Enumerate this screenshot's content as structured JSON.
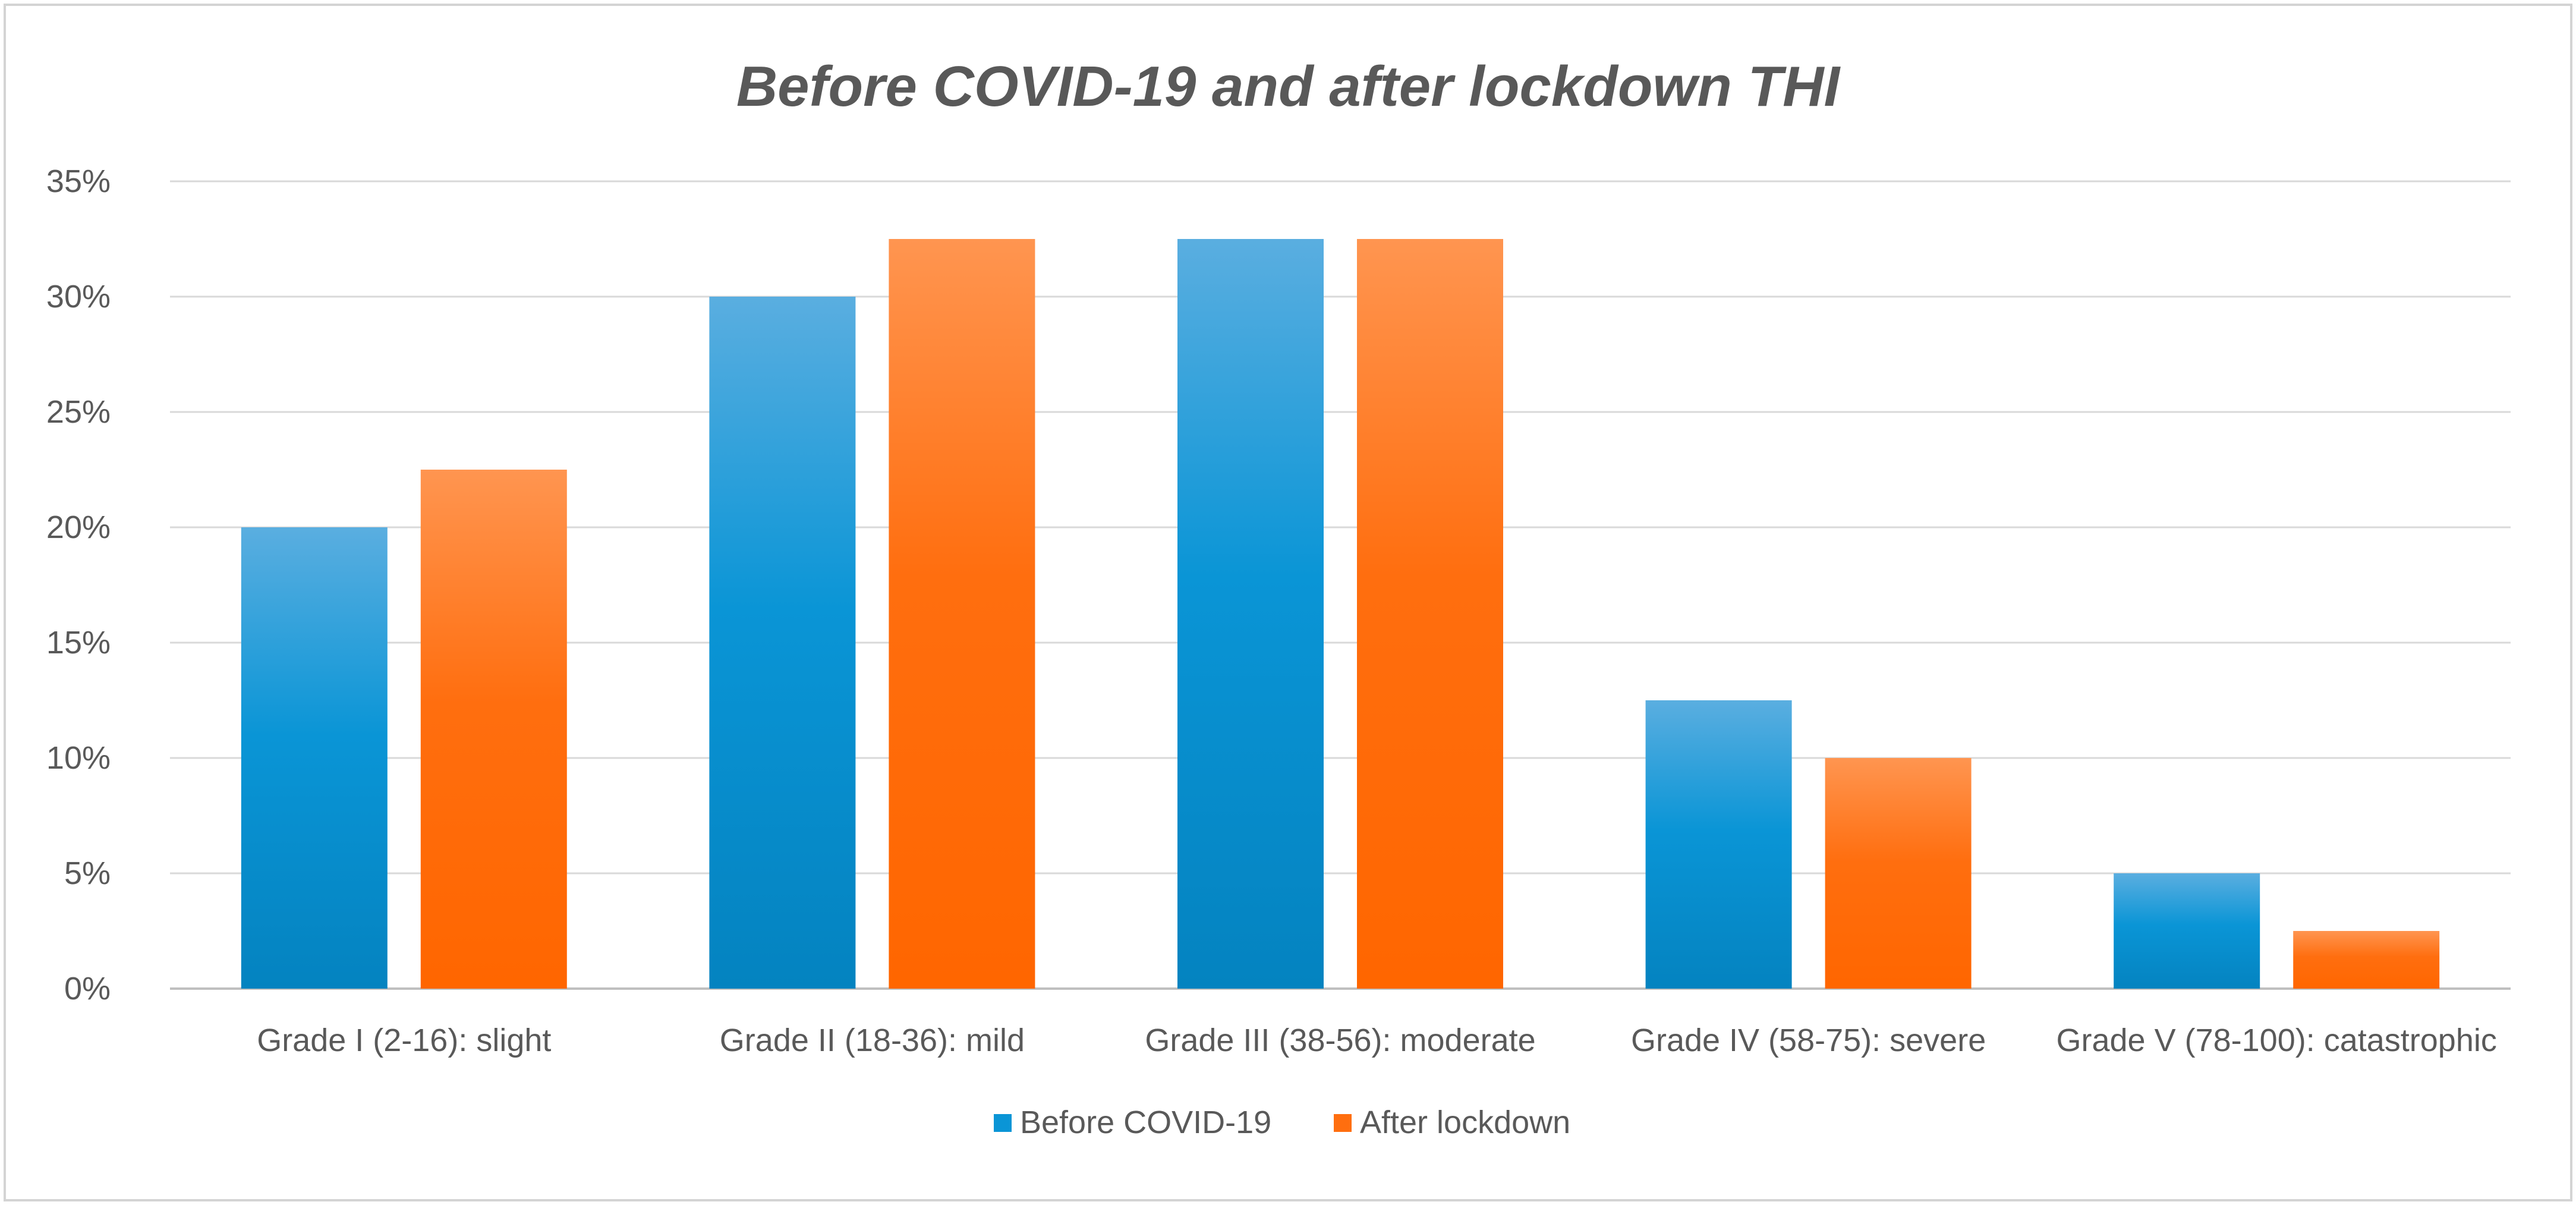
{
  "chart_data": {
    "type": "bar",
    "title": "Before COVID-19 and after lockdown THI",
    "xlabel": "",
    "ylabel": "",
    "ylim": [
      0,
      35
    ],
    "yticks": [
      0,
      5,
      10,
      15,
      20,
      25,
      30,
      35
    ],
    "ytick_labels": [
      "0%",
      "5%",
      "10%",
      "15%",
      "20%",
      "25%",
      "30%",
      "35%"
    ],
    "grid": true,
    "legend_position": "bottom",
    "categories": [
      "Grade I (2-16): slight",
      "Grade II (18-36): mild",
      "Grade III (38-56): moderate",
      "Grade IV (58-75): severe",
      "Grade V (78-100): catastrophic"
    ],
    "series": [
      {
        "name": "Before COVID-19",
        "values": [
          20,
          30,
          32.5,
          12.5,
          5
        ],
        "color": "#0a95d6"
      },
      {
        "name": "After lockdown",
        "values": [
          22.5,
          32.5,
          32.5,
          10,
          2.5
        ],
        "color": "#ff6e0f"
      }
    ]
  }
}
